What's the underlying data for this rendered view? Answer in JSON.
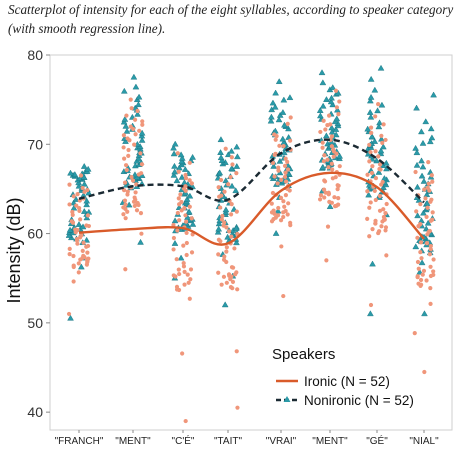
{
  "caption": {
    "line1": "Scatterplot of intensity for each of the eight syllables, according to speaker category",
    "line2": "(with smooth regression line)."
  },
  "colors": {
    "ironic": "#d95b2a",
    "nonironic": "#1b2a33",
    "ironic_points": "#f0967a",
    "nonironic_points": "#2a9aa8"
  },
  "chart_data": {
    "type": "scatter",
    "title": "",
    "xlabel": "",
    "ylabel": "Intensity (dB)",
    "categories": [
      "\"FRANCH\"",
      "\"MENT\"",
      "\"C'É\"",
      "\"TAIT\"",
      "\"VRAI\"",
      "\"MENT\"",
      "\"GÉ\"",
      "\"NIAL\""
    ],
    "ylim": [
      38,
      80
    ],
    "yticks": [
      40,
      50,
      60,
      70,
      80
    ],
    "legend": {
      "title": "Speakers",
      "placement": "bottom-right",
      "items": [
        "Ironic (N = 52)",
        "Nonironic (N = 52)"
      ]
    },
    "series": [
      {
        "name": "Ironic (N = 52)",
        "marker": "circle",
        "line_style": "solid",
        "smooth": [
          60.1,
          60.5,
          60.6,
          58.9,
          64.8,
          66.8,
          65.2,
          59.4
        ],
        "summary": [
          {
            "min": 51,
            "q1": 57,
            "median": 59.5,
            "q3": 62.5,
            "max": 66.5
          },
          {
            "min": 56,
            "q1": 63,
            "median": 66,
            "q3": 70.5,
            "max": 75
          },
          {
            "min": 39,
            "q1": 55,
            "median": 60,
            "q3": 63.5,
            "max": 69
          },
          {
            "min": 40.5,
            "q1": 55,
            "median": 59,
            "q3": 63,
            "max": 69.5
          },
          {
            "min": 53,
            "q1": 62,
            "median": 65,
            "q3": 68,
            "max": 73
          },
          {
            "min": 57,
            "q1": 64,
            "median": 67,
            "q3": 70,
            "max": 76
          },
          {
            "min": 52,
            "q1": 61,
            "median": 64.5,
            "q3": 68,
            "max": 74.5
          },
          {
            "min": 44.5,
            "q1": 55,
            "median": 59,
            "q3": 63,
            "max": 68
          }
        ]
      },
      {
        "name": "Nonironic (N = 52)",
        "marker": "triangle",
        "line_style": "dashed",
        "smooth": [
          63.9,
          65.3,
          65.3,
          63.8,
          69.0,
          70.5,
          68.4,
          63.5
        ],
        "summary": [
          {
            "min": 50.5,
            "q1": 60,
            "median": 63.5,
            "q3": 66,
            "max": 67.5
          },
          {
            "min": 59,
            "q1": 66,
            "median": 69,
            "q3": 72,
            "max": 77.5
          },
          {
            "min": 55,
            "q1": 61,
            "median": 64,
            "q3": 67,
            "max": 70
          },
          {
            "min": 52,
            "q1": 60,
            "median": 63.5,
            "q3": 67,
            "max": 70.5
          },
          {
            "min": 60,
            "q1": 66,
            "median": 69,
            "q3": 72,
            "max": 77
          },
          {
            "min": 63,
            "q1": 68,
            "median": 70.5,
            "q3": 73.5,
            "max": 78
          },
          {
            "min": 51,
            "q1": 65,
            "median": 68.5,
            "q3": 71,
            "max": 78.5
          },
          {
            "min": 51,
            "q1": 59,
            "median": 63,
            "q3": 67,
            "max": 75.5
          }
        ]
      }
    ]
  }
}
